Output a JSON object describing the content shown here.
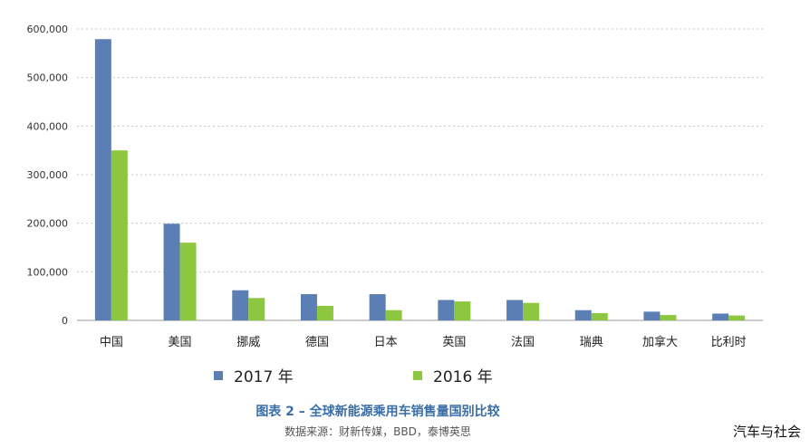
{
  "chart_data": {
    "type": "bar",
    "title": "图表 2 – 全球新能源乘用车销售量国别比较",
    "source": "数据来源：财新传媒，BBD，泰博英思",
    "categories": [
      "中国",
      "美国",
      "挪威",
      "德国",
      "日本",
      "英国",
      "法国",
      "瑞典",
      "加拿大",
      "比利时"
    ],
    "series": [
      {
        "name": "2017 年",
        "color": "#5b7fb5",
        "values": [
          579000,
          199000,
          62000,
          54000,
          54000,
          42000,
          42000,
          21000,
          18000,
          14000
        ]
      },
      {
        "name": "2016 年",
        "color": "#8dc63f",
        "values": [
          350000,
          160000,
          46000,
          30000,
          21000,
          39000,
          36000,
          15000,
          11000,
          10000
        ]
      }
    ],
    "yticks": [
      "0",
      "100,000",
      "200,000",
      "300,000",
      "400,000",
      "500,000",
      "600,000"
    ],
    "ylim": [
      0,
      600000
    ],
    "grid": true,
    "legend_position": "bottom"
  },
  "watermark": "汽车与社会"
}
